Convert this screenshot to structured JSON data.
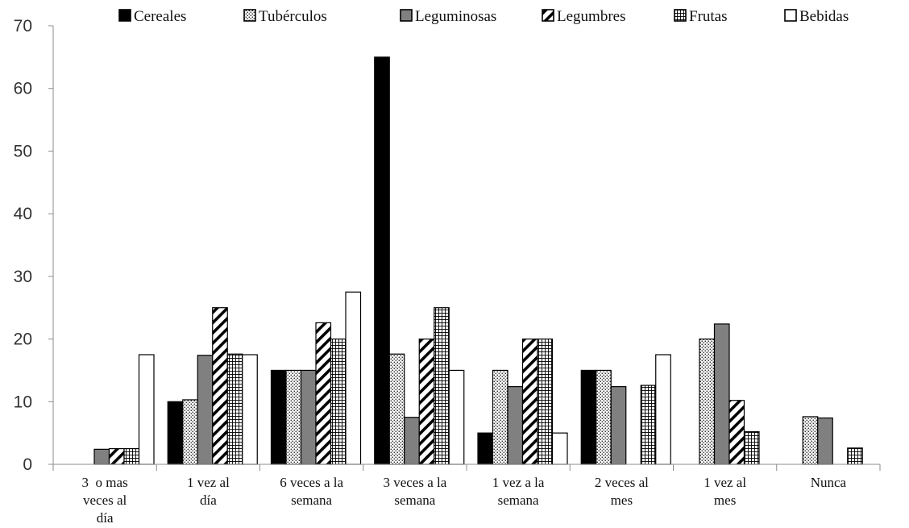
{
  "chart_data": {
    "type": "bar",
    "title": "",
    "xlabel": "",
    "ylabel": "",
    "ylim": [
      0,
      70
    ],
    "yticks": [
      0,
      10,
      20,
      30,
      40,
      50,
      60,
      70
    ],
    "grid": false,
    "legend_position": "top",
    "categories": [
      [
        "3  o mas",
        "veces al",
        "día"
      ],
      [
        "1 vez al",
        "día"
      ],
      [
        "6 veces a la",
        "semana"
      ],
      [
        "3 veces a la",
        "semana"
      ],
      [
        "1 vez a la",
        "semana"
      ],
      [
        "2 veces al",
        "mes"
      ],
      [
        "1 vez al",
        "mes"
      ],
      [
        "Nunca"
      ]
    ],
    "series": [
      {
        "name": "Cereales",
        "pattern": "solid-black",
        "values": [
          0,
          10,
          15,
          65,
          5,
          15,
          0,
          0
        ]
      },
      {
        "name": "Tubérculos",
        "pattern": "dots",
        "values": [
          0,
          10.3,
          15,
          17.6,
          15,
          15,
          20,
          7.6
        ]
      },
      {
        "name": "Leguminosas",
        "pattern": "solid-gray",
        "values": [
          2.4,
          17.4,
          15,
          7.5,
          12.4,
          12.4,
          22.4,
          7.4
        ]
      },
      {
        "name": "Legumbres",
        "pattern": "diagonal",
        "values": [
          2.5,
          25,
          22.6,
          20,
          20,
          0,
          10.2,
          0
        ]
      },
      {
        "name": "Frutas",
        "pattern": "grid",
        "values": [
          2.5,
          17.6,
          20,
          25,
          20,
          12.6,
          5.2,
          2.6
        ]
      },
      {
        "name": "Bebidas",
        "pattern": "white",
        "values": [
          17.5,
          17.5,
          27.5,
          15,
          5,
          17.5,
          0,
          0
        ]
      }
    ],
    "colors": {
      "black": "#000000",
      "gray": "#808080",
      "white": "#ffffff"
    }
  }
}
